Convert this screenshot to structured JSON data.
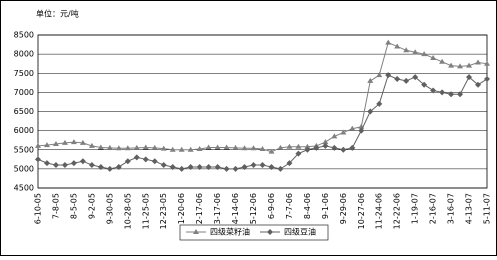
{
  "chart_data": {
    "type": "line",
    "unit_label": "单位：元/吨",
    "categories": [
      "6-10-05",
      null,
      "7-8-05",
      null,
      "8-5-05",
      null,
      "9-2-05",
      null,
      "9-30-05",
      null,
      "10-28-05",
      null,
      "11-25-05",
      null,
      "12-23-05",
      null,
      "1-20-06",
      null,
      "2-17-06",
      null,
      "3-17-06",
      null,
      "4-14-06",
      null,
      "5-12-06",
      null,
      "6-9-06",
      null,
      "7-7-06",
      null,
      "8-4-06",
      null,
      "9-1-06",
      null,
      "9-29-06",
      null,
      "10-27-06",
      null,
      "11-24-06",
      null,
      "12-22-06",
      null,
      "1-19-07",
      null,
      "2-16-07",
      null,
      "3-16-07",
      null,
      "4-13-07",
      null,
      "5-11-07"
    ],
    "series": [
      {
        "name": "四级菜籽油",
        "color": "#808080",
        "marker": "triangle",
        "values": [
          5600,
          5620,
          5650,
          5680,
          5700,
          5680,
          5600,
          5560,
          5550,
          5540,
          5540,
          5550,
          5560,
          5550,
          5530,
          5500,
          5500,
          5500,
          5520,
          5560,
          5560,
          5560,
          5550,
          5540,
          5540,
          5520,
          5450,
          5550,
          5580,
          5580,
          5580,
          5600,
          5700,
          5850,
          5950,
          6050,
          6100,
          7300,
          7450,
          8300,
          8200,
          8100,
          8050,
          8000,
          7900,
          7800,
          7700,
          7680,
          7700,
          7780,
          7750
        ]
      },
      {
        "name": "四级豆油",
        "color": "#606060",
        "marker": "diamond",
        "values": [
          5250,
          5150,
          5100,
          5100,
          5150,
          5200,
          5100,
          5050,
          5000,
          5050,
          5200,
          5300,
          5250,
          5200,
          5100,
          5050,
          5000,
          5050,
          5050,
          5050,
          5050,
          5000,
          5000,
          5050,
          5100,
          5100,
          5050,
          5000,
          5150,
          5400,
          5500,
          5550,
          5600,
          5550,
          5500,
          5550,
          6000,
          6500,
          6700,
          7450,
          7350,
          7300,
          7400,
          7200,
          7050,
          7000,
          6950,
          6950,
          7400,
          7200,
          7350
        ]
      }
    ],
    "ylim": [
      4500,
      8500
    ],
    "yticks": [
      4500,
      5000,
      5500,
      6000,
      6500,
      7000,
      7500,
      8000,
      8500
    ],
    "grid": true,
    "legend": "bottom"
  }
}
